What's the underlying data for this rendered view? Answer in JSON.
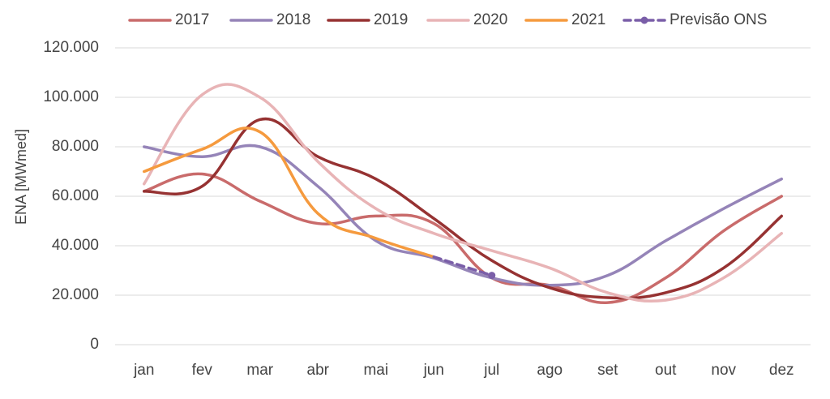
{
  "chart_data": {
    "type": "line",
    "title": "",
    "xlabel": "",
    "ylabel": "ENA [MWmed]",
    "ylim": [
      0,
      120000
    ],
    "yticks": [
      0,
      20000,
      40000,
      60000,
      80000,
      100000,
      120000
    ],
    "ytick_labels": [
      "0",
      "20.000",
      "40.000",
      "60.000",
      "80.000",
      "100.000",
      "120.000"
    ],
    "categories": [
      "jan",
      "fev",
      "mar",
      "abr",
      "mai",
      "jun",
      "jul",
      "ago",
      "set",
      "out",
      "nov",
      "dez"
    ],
    "grid": "horizontal",
    "legend_position": "top",
    "series": [
      {
        "name": "2017",
        "color": "#c96b6b",
        "dashed": false,
        "values": [
          62000,
          69000,
          58000,
          49000,
          52000,
          49000,
          27000,
          24000,
          17000,
          27000,
          46000,
          60000
        ]
      },
      {
        "name": "2018",
        "color": "#9584b8",
        "dashed": false,
        "values": [
          80000,
          76000,
          80000,
          64000,
          42000,
          35000,
          27000,
          24000,
          28000,
          42000,
          55000,
          67000
        ]
      },
      {
        "name": "2019",
        "color": "#963232",
        "dashed": false,
        "values": [
          62000,
          64000,
          91000,
          76000,
          67000,
          51000,
          34000,
          23000,
          19000,
          21000,
          31000,
          52000
        ]
      },
      {
        "name": "2020",
        "color": "#e8b4b6",
        "dashed": false,
        "values": [
          65000,
          101000,
          100000,
          74000,
          55000,
          45000,
          38000,
          31000,
          21000,
          18000,
          27000,
          45000
        ]
      },
      {
        "name": "2021",
        "color": "#f59a3e",
        "dashed": false,
        "values": [
          70000,
          79000,
          86000,
          53000,
          43000,
          35500,
          null,
          null,
          null,
          null,
          null,
          null
        ]
      },
      {
        "name": "Previsão ONS",
        "color": "#7a5ea8",
        "dashed": true,
        "marker_index": 6,
        "values": [
          null,
          null,
          null,
          null,
          null,
          35500,
          28000,
          null,
          null,
          null,
          null,
          null
        ]
      }
    ]
  }
}
